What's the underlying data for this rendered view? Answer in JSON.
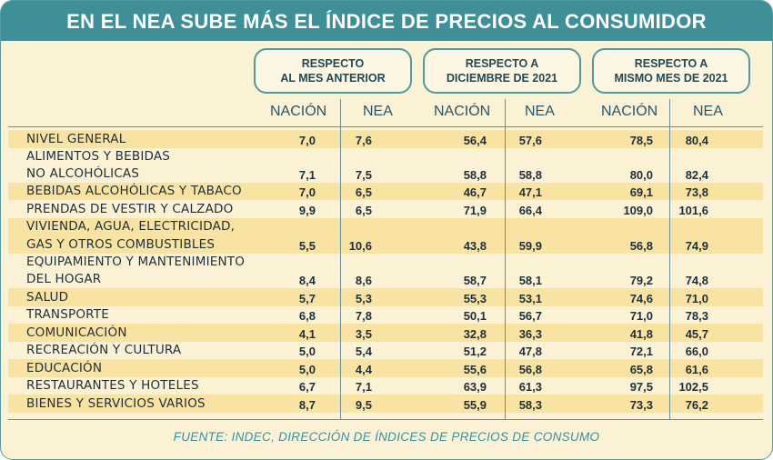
{
  "title": "EN EL NEA SUBE MÁS EL ÍNDICE DE PRECIOS AL CONSUMIDOR",
  "groups": [
    {
      "line1": "RESPECTO",
      "line2": "AL MES ANTERIOR"
    },
    {
      "line1": "RESPECTO A",
      "line2": "DICIEMBRE DE 2021"
    },
    {
      "line1": "RESPECTO A",
      "line2": "MISMO MES DE 2021"
    }
  ],
  "columns": [
    "NACIÓN",
    "NEA",
    "NACIÓN",
    "NEA",
    "NACIÓN",
    "NEA"
  ],
  "rows": [
    {
      "label1": "NIVEL GENERAL",
      "label2": "",
      "values": [
        "7,0",
        "7,6",
        "56,4",
        "57,6",
        "78,5",
        "80,4"
      ]
    },
    {
      "label1": "ALIMENTOS Y BEBIDAS",
      "label2": "NO ALCOHÓLICAS",
      "values": [
        "7,1",
        "7,5",
        "58,8",
        "58,8",
        "80,0",
        "82,4"
      ]
    },
    {
      "label1": "BEBIDAS ALCOHÓLICAS Y TABACO",
      "label2": "",
      "values": [
        "7,0",
        "6,5",
        "46,7",
        "47,1",
        "69,1",
        "73,8"
      ]
    },
    {
      "label1": "PRENDAS DE VESTIR Y CALZADO",
      "label2": "",
      "values": [
        "9,9",
        "6,5",
        "71,9",
        "66,4",
        "109,0",
        "101,6"
      ]
    },
    {
      "label1": "VIVIENDA, AGUA, ELECTRICIDAD,",
      "label2": "GAS Y OTROS COMBUSTIBLES",
      "values": [
        "5,5",
        "10,6",
        "43,8",
        "59,9",
        "56,8",
        "74,9"
      ]
    },
    {
      "label1": "EQUIPAMIENTO Y MANTENIMIENTO",
      "label2": "DEL HOGAR",
      "values": [
        "8,4",
        "8,6",
        "58,7",
        "58,1",
        "79,2",
        "74,8"
      ]
    },
    {
      "label1": "SALUD",
      "label2": "",
      "values": [
        "5,7",
        "5,3",
        "55,3",
        "53,1",
        "74,6",
        "71,0"
      ]
    },
    {
      "label1": "TRANSPORTE",
      "label2": "",
      "values": [
        "6,8",
        "7,8",
        "50,1",
        "56,7",
        "71,0",
        "78,3"
      ]
    },
    {
      "label1": "COMUNICACIÓN",
      "label2": "",
      "values": [
        "4,1",
        "3,5",
        "32,8",
        "36,3",
        "41,8",
        "45,7"
      ]
    },
    {
      "label1": "RECREACIÓN Y CULTURA",
      "label2": "",
      "values": [
        "5,0",
        "5,4",
        "51,2",
        "47,8",
        "72,1",
        "66,0"
      ]
    },
    {
      "label1": "EDUCACIÓN",
      "label2": "",
      "values": [
        "5,0",
        "4,4",
        "55,6",
        "56,8",
        "65,8",
        "61,6"
      ]
    },
    {
      "label1": "RESTAURANTES Y HOTELES",
      "label2": "",
      "values": [
        "6,7",
        "7,1",
        "63,9",
        "61,3",
        "97,5",
        "102,5"
      ]
    },
    {
      "label1": "BIENES Y SERVICIOS VARIOS",
      "label2": "",
      "values": [
        "8,7",
        "9,5",
        "55,9",
        "58,3",
        "73,3",
        "76,2"
      ]
    }
  ],
  "source": "FUENTE: INDEC, DIRECCIÓN DE ÍNDICES DE PRECIOS DE CONSUMO",
  "colors": {
    "accent": "#3e8f98",
    "band": "#f9e3a2",
    "background": "#fbf2d6"
  }
}
